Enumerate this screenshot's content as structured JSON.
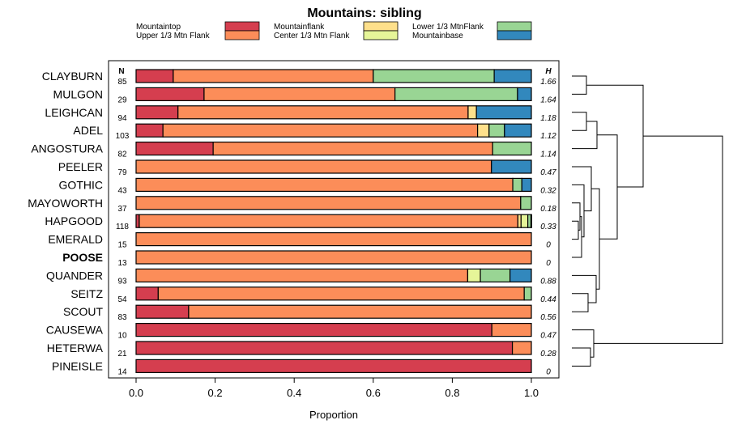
{
  "chart_data": {
    "type": "bar",
    "stacked": true,
    "orientation": "horizontal",
    "title": "Mountains: sibling",
    "xlabel": "Proportion",
    "xlim": [
      0,
      1
    ],
    "xticks": [
      "0.0",
      "0.2",
      "0.4",
      "0.6",
      "0.8",
      "1.0"
    ],
    "n_header": "N",
    "h_header": "H",
    "highlight": "POOSE",
    "legend": [
      {
        "name": "Mountaintop",
        "color": "#d53e4f"
      },
      {
        "name": "Upper 1/3 Mtn Flank",
        "color": "#fc8d59"
      },
      {
        "name": "Mountainflank",
        "color": "#fee08b"
      },
      {
        "name": "Center 1/3 Mtn Flank",
        "color": "#e6f598"
      },
      {
        "name": "Lower 1/3 MtnFlank",
        "color": "#99d594"
      },
      {
        "name": "Mountainbase",
        "color": "#3288bd"
      }
    ],
    "categories": [
      "CLAYBURN",
      "MULGON",
      "LEIGHCAN",
      "ADEL",
      "ANGOSTURA",
      "PEELER",
      "GOTHIC",
      "MAYOWORTH",
      "HAPGOOD",
      "EMERALD",
      "POOSE",
      "QUANDER",
      "SEITZ",
      "SCOUT",
      "CAUSEWA",
      "HETERWA",
      "PINEISLE"
    ],
    "N": [
      "85",
      "29",
      "94",
      "103",
      "82",
      "79",
      "43",
      "37",
      "118",
      "15",
      "13",
      "93",
      "54",
      "83",
      "10",
      "21",
      "14"
    ],
    "H": [
      "1.66",
      "1.64",
      "1.18",
      "1.12",
      "1.14",
      "0.47",
      "0.32",
      "0.18",
      "0.33",
      "0",
      "0",
      "0.88",
      "0.44",
      "0.56",
      "0.47",
      "0.28",
      "0"
    ],
    "series": [
      {
        "name": "Mountaintop",
        "values": [
          0.094,
          0.172,
          0.106,
          0.068,
          0.195,
          0,
          0,
          0,
          0.008,
          0,
          0,
          0,
          0.056,
          0.133,
          0.9,
          0.952,
          1.0
        ]
      },
      {
        "name": "Upper 1/3 Mtn Flank",
        "values": [
          0.506,
          0.483,
          0.734,
          0.796,
          0.707,
          0.899,
          0.953,
          0.973,
          0.958,
          1.0,
          1.0,
          0.839,
          0.926,
          0.867,
          0.1,
          0.048,
          0
        ]
      },
      {
        "name": "Mountainflank",
        "values": [
          0,
          0,
          0.021,
          0.029,
          0,
          0,
          0,
          0,
          0.008,
          0,
          0,
          0,
          0,
          0,
          0,
          0,
          0
        ]
      },
      {
        "name": "Center 1/3 Mtn Flank",
        "values": [
          0,
          0,
          0,
          0,
          0,
          0,
          0,
          0,
          0.017,
          0,
          0,
          0.032,
          0,
          0,
          0,
          0,
          0
        ]
      },
      {
        "name": "Lower 1/3 MtnFlank",
        "values": [
          0.306,
          0.31,
          0,
          0.039,
          0.098,
          0,
          0.023,
          0.027,
          0.008,
          0,
          0,
          0.075,
          0.018,
          0,
          0,
          0,
          0
        ]
      },
      {
        "name": "Mountainbase",
        "values": [
          0.094,
          0.035,
          0.139,
          0.068,
          0,
          0.101,
          0.024,
          0,
          0.001,
          0,
          0,
          0.054,
          0,
          0,
          0,
          0,
          0
        ]
      }
    ]
  }
}
